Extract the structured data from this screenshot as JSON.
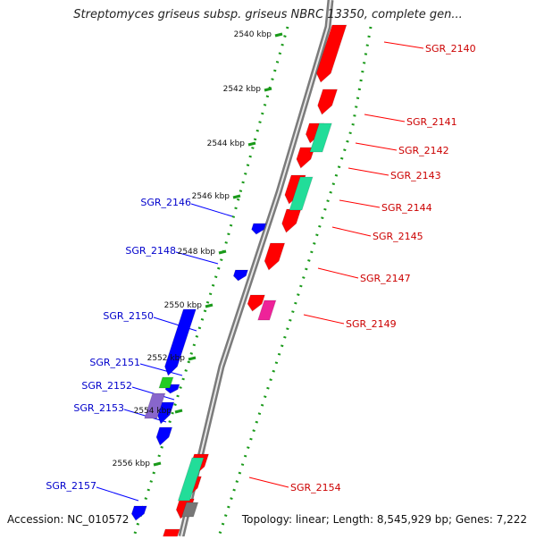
{
  "header": {
    "title": "Streptomyces griseus subsp. griseus NBRC 13350, complete gen..."
  },
  "footer": {
    "accession": "Accession: NC_010572",
    "summary": "Topology: linear; Length: 8,545,929 bp; Genes: 7,222"
  },
  "colors": {
    "forward": "#ff0000",
    "reverse": "#0000ff",
    "forward_label": "#cc0000",
    "reverse_label": "#0000cc",
    "green": "#22cc22",
    "teal": "#22dd99",
    "violet": "#8866cc",
    "magenta": "#ee2299",
    "gray": "#777777",
    "scale_tick": "#1a9a1a"
  },
  "scale_ticks": [
    "2540 kbp",
    "2542 kbp",
    "2544 kbp",
    "2546 kbp",
    "2548 kbp",
    "2550 kbp",
    "2552 kbp",
    "2554 kbp",
    "2556 kbp"
  ],
  "forward_genes": [
    "SGR_2140",
    "SGR_2141",
    "SGR_2142",
    "SGR_2143",
    "SGR_2144",
    "SGR_2145",
    "SGR_2147",
    "SGR_2149",
    "SGR_2154"
  ],
  "reverse_genes": [
    "SGR_2146",
    "SGR_2148",
    "SGR_2150",
    "SGR_2151",
    "SGR_2152",
    "SGR_2153",
    "SGR_2157"
  ]
}
